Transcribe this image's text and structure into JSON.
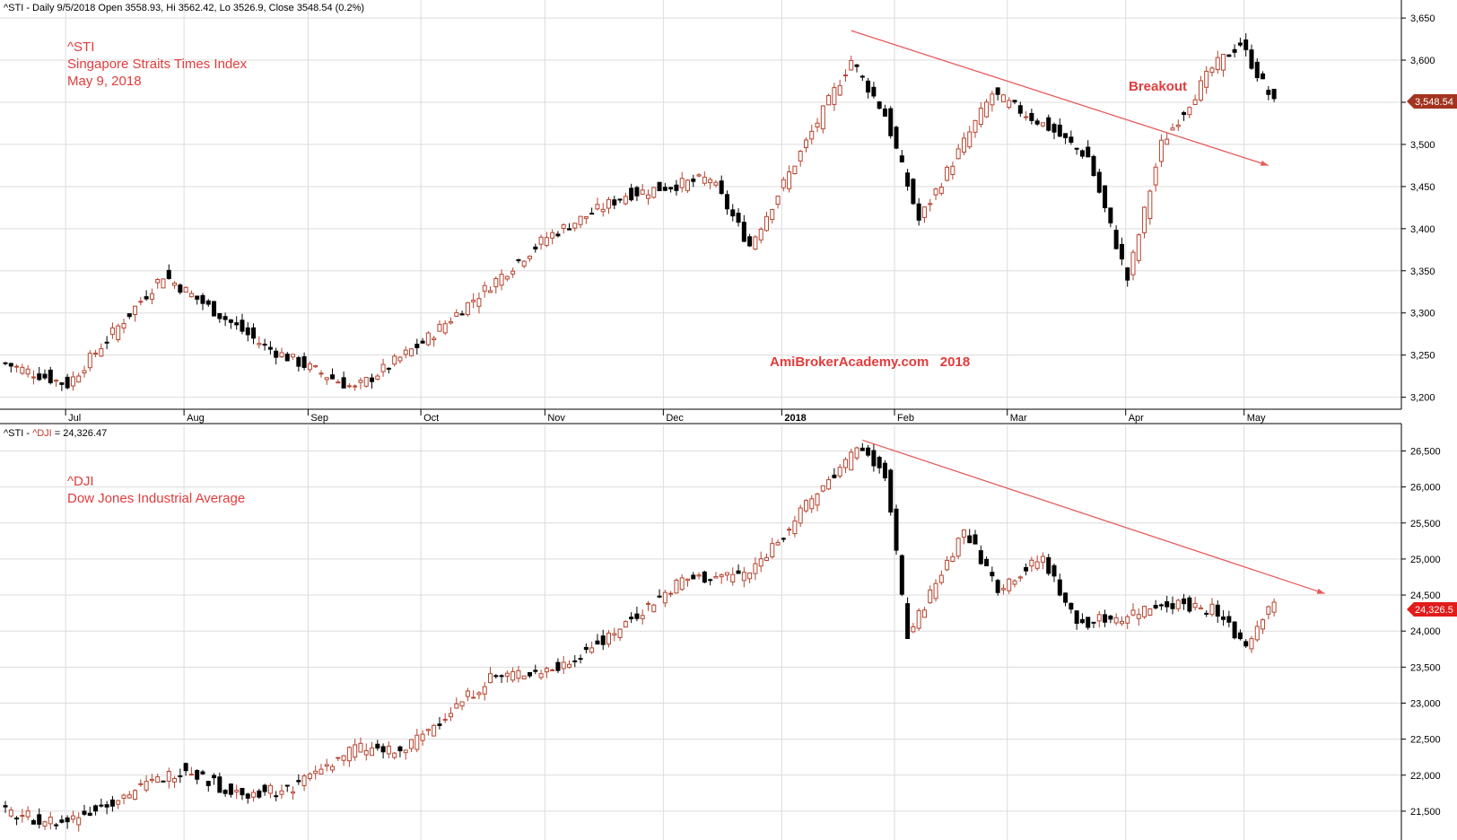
{
  "colors": {
    "up": "#b5442f",
    "down": "#000000",
    "annotation": "#e23b3b",
    "trendline": "#e85a5a",
    "grid": "#dcdcdc",
    "axis": "#000000",
    "price_badge_top": "#a3341f",
    "price_badge_bottom": "#e31b1b"
  },
  "top_panel": {
    "header": "^STI - Daily 9/5/2018 Open 3558.93, Hi 3562.42, Lo 3526.9, Close 3548.54 (0.2%)",
    "labels": {
      "ticker": "^STI",
      "name": "Singapore Straits Times Index",
      "date": "May 9, 2018",
      "breakout": "Breakout",
      "watermark": "AmiBrokerAcademy.com   2018"
    },
    "price_badge": "3,548.54"
  },
  "bottom_panel": {
    "header_prefix": "^STI - ",
    "header_symbol": "^DJI",
    "header_suffix": " = 24,326.47",
    "labels": {
      "ticker": "^DJI",
      "name": "Dow Jones Industrial Average"
    },
    "price_badge": "24,326.5"
  },
  "x_axis": {
    "months": [
      "Jul",
      "Aug",
      "Sep",
      "Oct",
      "Nov",
      "Dec",
      "2018",
      "Feb",
      "Mar",
      "Apr",
      "May"
    ],
    "month_start_index": [
      11,
      32,
      54,
      74,
      96,
      117,
      138,
      158,
      178,
      199,
      220
    ]
  },
  "chart_data": [
    {
      "type": "candlestick",
      "symbol": "^STI",
      "title": "Singapore Straits Times Index",
      "ylim": [
        3190,
        3665
      ],
      "y_ticks": [
        3200,
        3250,
        3300,
        3350,
        3400,
        3450,
        3500,
        3550,
        3600,
        3650
      ],
      "y_tick_labels": [
        "3,200",
        "3,250",
        "3,300",
        "3,350",
        "3,400",
        "3,450",
        "3,500",
        "3,550",
        "3,600",
        "3,650"
      ],
      "x_count": 226,
      "grid": true,
      "last_close": 3548.54,
      "last_bar": {
        "open": 3558.93,
        "high": 3562.42,
        "low": 3526.9,
        "close": 3548.54
      },
      "trendline": {
        "x": [
          150,
          224
        ],
        "y": [
          3635,
          3475
        ]
      },
      "key_points": {
        "x": [
          0,
          11,
          28,
          46,
          62,
          74,
          96,
          110,
          125,
          132,
          150,
          156,
          162,
          175,
          185,
          192,
          199,
          205,
          214,
          219,
          225
        ],
        "close": [
          3240,
          3215,
          3345,
          3260,
          3210,
          3265,
          3390,
          3440,
          3460,
          3380,
          3600,
          3535,
          3410,
          3560,
          3520,
          3485,
          3340,
          3500,
          3590,
          3620,
          3548.54
        ]
      }
    },
    {
      "type": "candlestick",
      "symbol": "^DJI",
      "title": "Dow Jones Industrial Average",
      "ylim": [
        21150,
        26780
      ],
      "y_ticks": [
        21500,
        22000,
        22500,
        23000,
        23500,
        24000,
        24500,
        25000,
        25500,
        26000,
        26500
      ],
      "y_tick_labels": [
        "21,500",
        "22,000",
        "22,500",
        "23,000",
        "23,500",
        "24,000",
        "24,500",
        "25,000",
        "25,500",
        "26,000",
        "26,500"
      ],
      "x_count": 226,
      "grid": true,
      "last_close": 24326.47,
      "trendline": {
        "x": [
          152,
          234
        ],
        "y": [
          26650,
          24520
        ]
      },
      "key_points": {
        "x": [
          0,
          10,
          32,
          40,
          50,
          62,
          70,
          86,
          98,
          110,
          120,
          132,
          146,
          152,
          156,
          160,
          170,
          176,
          184,
          190,
          198,
          206,
          214,
          220,
          224,
          225
        ],
        "close": [
          21480,
          21330,
          22100,
          21750,
          21800,
          22380,
          22300,
          23350,
          23480,
          24100,
          24700,
          24800,
          26100,
          26550,
          26200,
          23900,
          25400,
          24600,
          25000,
          24100,
          24200,
          24400,
          24300,
          23800,
          24350,
          24326.47
        ]
      }
    }
  ]
}
